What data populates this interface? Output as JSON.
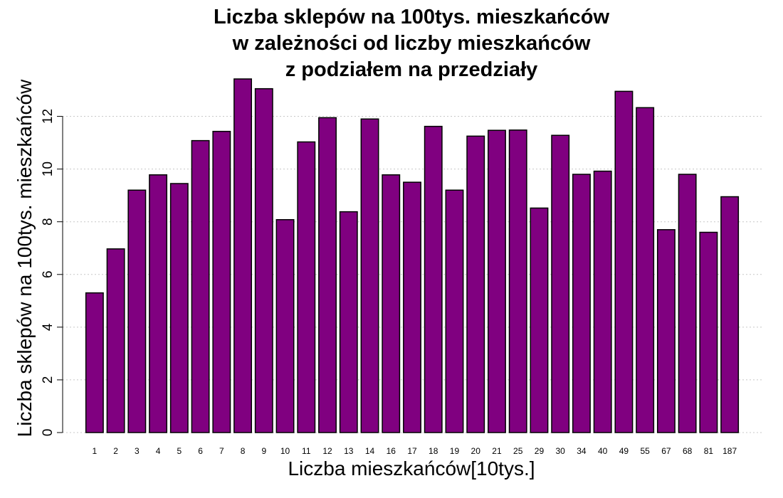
{
  "chart_data": {
    "type": "bar",
    "title": "Liczba sklepów na 100tys. mieszkańców",
    "subtitle": "w zależności od liczby mieszkańców",
    "subtitle2": "z podziałem na przedziały",
    "xlabel": "Liczba mieszkańców[10tys.]",
    "ylabel": "Liczba sklepów na 100tys. mieszkańców",
    "categories": [
      "1",
      "2",
      "3",
      "4",
      "5",
      "6",
      "7",
      "8",
      "9",
      "10",
      "11",
      "12",
      "13",
      "14",
      "16",
      "17",
      "18",
      "19",
      "20",
      "21",
      "25",
      "29",
      "30",
      "34",
      "40",
      "49",
      "55",
      "67",
      "68",
      "81",
      "187"
    ],
    "values": [
      5.3,
      6.97,
      9.2,
      9.78,
      9.45,
      11.08,
      11.43,
      13.42,
      13.05,
      8.08,
      11.03,
      11.95,
      8.38,
      11.9,
      9.78,
      9.5,
      11.62,
      9.2,
      11.25,
      11.47,
      11.48,
      8.52,
      11.28,
      9.8,
      9.92,
      12.95,
      12.33,
      7.7,
      9.8,
      7.6,
      8.95
    ],
    "ylim": [
      0,
      13.5
    ],
    "yticks": [
      0,
      2,
      4,
      6,
      8,
      10,
      12
    ],
    "grid": true,
    "bar_color": "#800080"
  }
}
